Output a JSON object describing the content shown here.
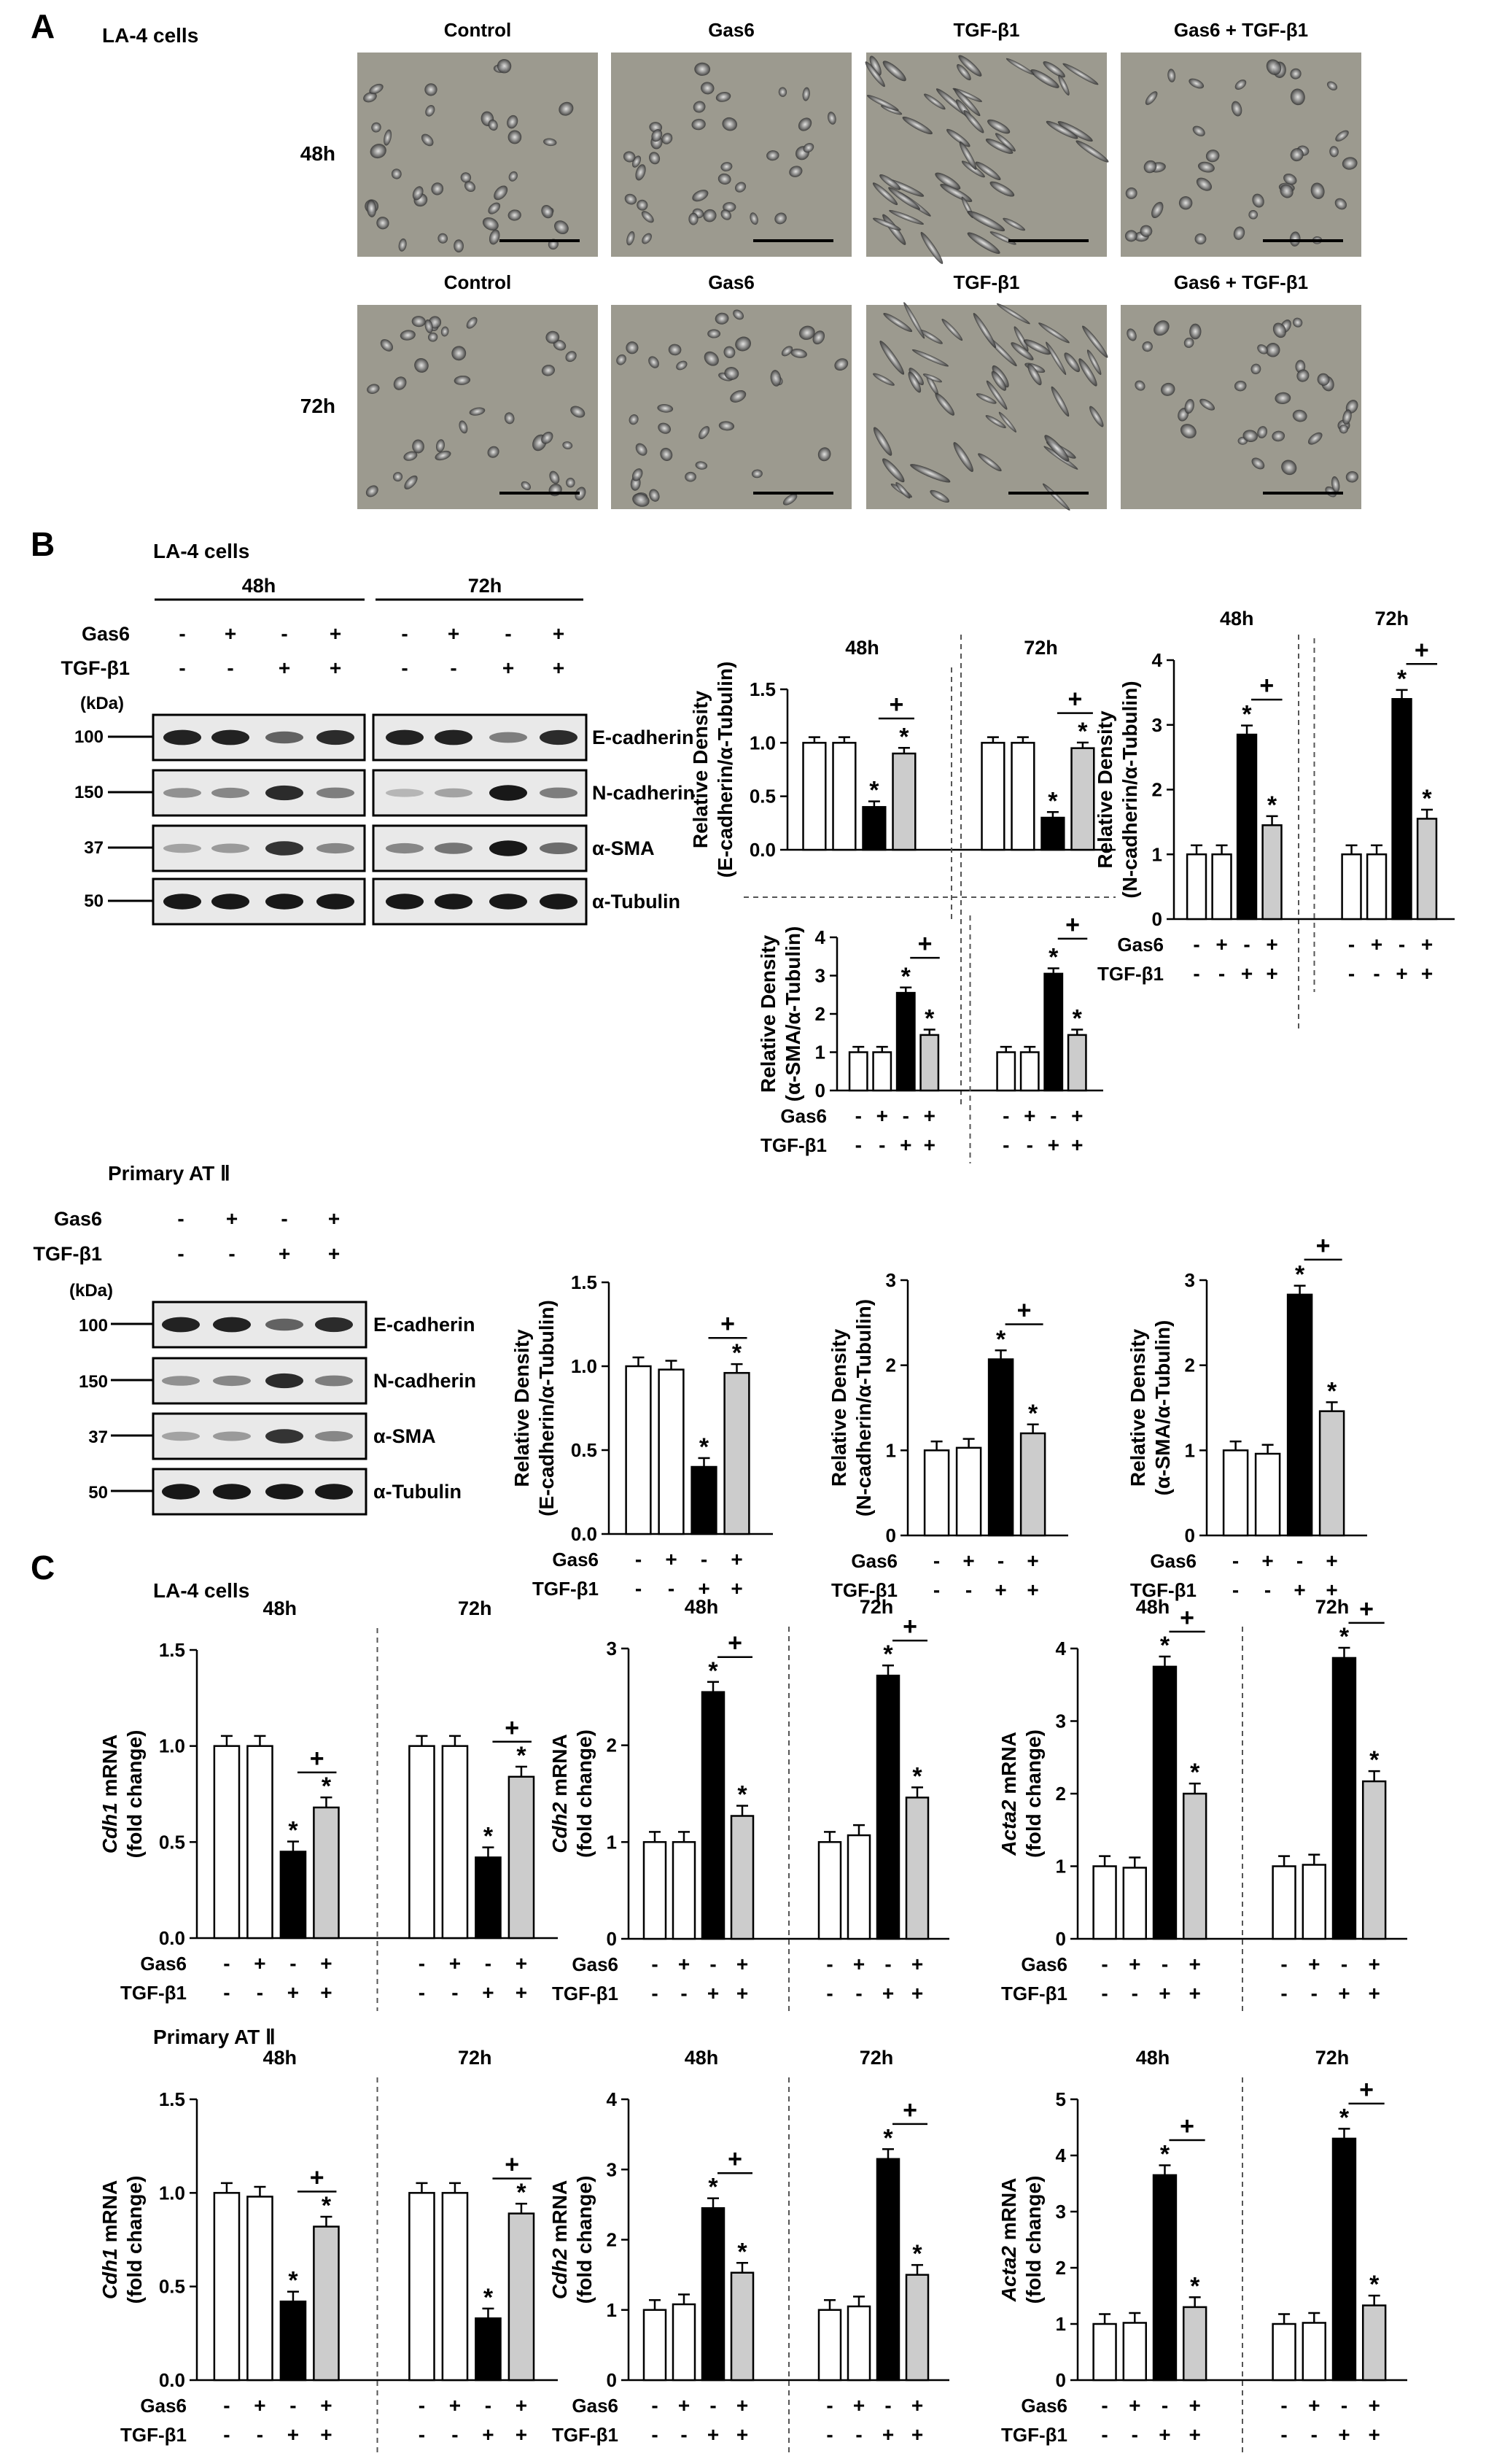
{
  "panels": {
    "A": "A",
    "B": "B",
    "C": "C"
  },
  "partA": {
    "cell_line": "LA-4 cells",
    "conditions": [
      "Control",
      "Gas6",
      "TGF-β1",
      "Gas6 + TGF-β1"
    ],
    "times": [
      "48h",
      "72h"
    ]
  },
  "partB_la4": {
    "cell_line": "LA-4 cells",
    "blot_times": [
      "48h",
      "72h"
    ],
    "row_labels": [
      "Gas6",
      "TGF-β1"
    ],
    "kda_label": "(kDa)",
    "kda": [
      "100",
      "150",
      "37",
      "50"
    ],
    "proteins": [
      "E-cadherin",
      "N-cadherin",
      "α-SMA",
      "α-Tubulin"
    ],
    "gas6_signs": [
      "-",
      "+",
      "-",
      "+"
    ],
    "tgf_signs": [
      "-",
      "-",
      "+",
      "+"
    ]
  },
  "partB_primary": {
    "cell_line": "Primary AT Ⅱ",
    "row_labels": [
      "Gas6",
      "TGF-β1"
    ],
    "kda_label": "(kDa)",
    "kda": [
      "100",
      "150",
      "37",
      "50"
    ],
    "proteins": [
      "E-cadherin",
      "N-cadherin",
      "α-SMA",
      "α-Tubulin"
    ],
    "gas6_signs": [
      "-",
      "+",
      "-",
      "+"
    ],
    "tgf_signs": [
      "-",
      "-",
      "+",
      "+"
    ]
  },
  "partC": {
    "la4_label": "LA-4 cells",
    "primary_label": "Primary AT Ⅱ"
  },
  "colors": {
    "control": "#ffffff",
    "gas6": "#ffffff",
    "tgf": "#000000",
    "combo": "#cccccc",
    "edge": "#000000"
  },
  "chart_data": [
    {
      "id": "b_ecad_la4",
      "type": "bar",
      "ylabel": [
        "Relative Density",
        "(E-cadherin/α-Tubulin)"
      ],
      "ylim": [
        0,
        1.5
      ],
      "ticks": [
        "0.0",
        "0.5",
        "1.0",
        "1.5"
      ],
      "groups": [
        {
          "label": "48h",
          "values": [
            1.0,
            1.0,
            0.4,
            0.9
          ]
        },
        {
          "label": "72h",
          "values": [
            1.0,
            1.0,
            0.3,
            0.95
          ]
        }
      ],
      "star": "*",
      "plus": "+",
      "show_signs": false
    },
    {
      "id": "b_ncad_la4",
      "type": "bar",
      "ylabel": [
        "Relative Density",
        "(N-cadherin/α-Tubulin)"
      ],
      "ylim": [
        0,
        4
      ],
      "ticks": [
        "0",
        "1",
        "2",
        "3",
        "4"
      ],
      "groups": [
        {
          "label": "48h",
          "values": [
            1.0,
            1.0,
            2.85,
            1.45
          ]
        },
        {
          "label": "72h",
          "values": [
            1.0,
            1.0,
            3.4,
            1.55
          ]
        }
      ],
      "star": "*",
      "plus": "+",
      "show_signs": true,
      "signs": {
        "gas6": "Gas6",
        "tgf": "TGF-β1",
        "gas6_signs": [
          "-",
          "+",
          "-",
          "+"
        ],
        "tgf_signs": [
          "-",
          "-",
          "+",
          "+"
        ]
      }
    },
    {
      "id": "b_sma_la4",
      "type": "bar",
      "ylabel": [
        "Relative Density",
        "(α-SMA/α-Tubulin)"
      ],
      "ylim": [
        0,
        4
      ],
      "ticks": [
        "0",
        "1",
        "2",
        "3",
        "4"
      ],
      "groups": [
        {
          "label": "",
          "values": [
            1.0,
            1.0,
            2.55,
            1.45
          ]
        },
        {
          "label": "",
          "values": [
            1.0,
            1.0,
            3.05,
            1.45
          ]
        }
      ],
      "star": "*",
      "plus": "+",
      "show_signs": true,
      "signs": {
        "gas6": "Gas6",
        "tgf": "TGF-β1",
        "gas6_signs": [
          "-",
          "+",
          "-",
          "+"
        ],
        "tgf_signs": [
          "-",
          "-",
          "+",
          "+"
        ]
      }
    },
    {
      "id": "b_ecad_p",
      "type": "bar",
      "ylabel": [
        "Relative Density",
        "(E-cadherin/α-Tubulin)"
      ],
      "ylim": [
        0,
        1.5
      ],
      "ticks": [
        "0.0",
        "0.5",
        "1.0",
        "1.5"
      ],
      "groups": [
        {
          "label": "",
          "values": [
            1.0,
            0.98,
            0.4,
            0.96
          ]
        }
      ],
      "star": "*",
      "plus": "+",
      "show_signs": true,
      "signs": {
        "gas6": "Gas6",
        "tgf": "TGF-β1",
        "gas6_signs": [
          "-",
          "+",
          "-",
          "+"
        ],
        "tgf_signs": [
          "-",
          "-",
          "+",
          "+"
        ]
      }
    },
    {
      "id": "b_ncad_p",
      "type": "bar",
      "ylabel": [
        "Relative Density",
        "(N-cadherin/α-Tubulin)"
      ],
      "ylim": [
        0,
        3
      ],
      "ticks": [
        "0",
        "1",
        "2",
        "3"
      ],
      "groups": [
        {
          "label": "",
          "values": [
            1.0,
            1.03,
            2.07,
            1.2
          ]
        }
      ],
      "star": "*",
      "plus": "+",
      "show_signs": true,
      "signs": {
        "gas6": "Gas6",
        "tgf": "TGF-β1",
        "gas6_signs": [
          "-",
          "+",
          "-",
          "+"
        ],
        "tgf_signs": [
          "-",
          "-",
          "+",
          "+"
        ]
      }
    },
    {
      "id": "b_sma_p",
      "type": "bar",
      "ylabel": [
        "Relative Density",
        "(α-SMA/α-Tubulin)"
      ],
      "ylim": [
        0,
        3
      ],
      "ticks": [
        "0",
        "1",
        "2",
        "3"
      ],
      "groups": [
        {
          "label": "",
          "values": [
            1.0,
            0.96,
            2.83,
            1.46
          ]
        }
      ],
      "star": "*",
      "plus": "+",
      "show_signs": true,
      "signs": {
        "gas6": "Gas6",
        "tgf": "TGF-β1",
        "gas6_signs": [
          "-",
          "+",
          "-",
          "+"
        ],
        "tgf_signs": [
          "-",
          "-",
          "+",
          "+"
        ]
      }
    },
    {
      "id": "c_cdh1_la4",
      "type": "bar",
      "ylabel": [
        "Cdh1 mRNA",
        "(fold change)"
      ],
      "ylim": [
        0,
        1.5
      ],
      "ticks": [
        "0.0",
        "0.5",
        "1.0",
        "1.5"
      ],
      "groups": [
        {
          "label": "48h",
          "values": [
            1.0,
            1.0,
            0.45,
            0.68
          ]
        },
        {
          "label": "72h",
          "values": [
            1.0,
            1.0,
            0.42,
            0.84
          ]
        }
      ],
      "star": "*",
      "plus": "+",
      "show_signs": true,
      "signs": {
        "gas6": "Gas6",
        "tgf": "TGF-β1",
        "gas6_signs": [
          "-",
          "+",
          "-",
          "+"
        ],
        "tgf_signs": [
          "-",
          "-",
          "+",
          "+"
        ]
      }
    },
    {
      "id": "c_cdh2_la4",
      "type": "bar",
      "ylabel": [
        "Cdh2 mRNA",
        "(fold change)"
      ],
      "ylim": [
        0,
        3
      ],
      "ticks": [
        "0",
        "1",
        "2",
        "3"
      ],
      "groups": [
        {
          "label": "48h",
          "values": [
            1.0,
            1.0,
            2.55,
            1.27
          ]
        },
        {
          "label": "72h",
          "values": [
            1.0,
            1.07,
            2.72,
            1.46
          ]
        }
      ],
      "star": "*",
      "plus": "+",
      "show_signs": true,
      "signs": {
        "gas6": "Gas6",
        "tgf": "TGF-β1",
        "gas6_signs": [
          "-",
          "+",
          "-",
          "+"
        ],
        "tgf_signs": [
          "-",
          "-",
          "+",
          "+"
        ]
      }
    },
    {
      "id": "c_acta2_la4",
      "type": "bar",
      "ylabel": [
        "Acta2 mRNA",
        "(fold change)"
      ],
      "ylim": [
        0,
        4
      ],
      "ticks": [
        "0",
        "1",
        "2",
        "3",
        "4"
      ],
      "groups": [
        {
          "label": "48h",
          "values": [
            1.0,
            0.98,
            3.75,
            2.0
          ]
        },
        {
          "label": "72h",
          "values": [
            1.0,
            1.02,
            3.87,
            2.17
          ]
        }
      ],
      "star": "*",
      "plus": "+",
      "show_signs": true,
      "signs": {
        "gas6": "Gas6",
        "tgf": "TGF-β1",
        "gas6_signs": [
          "-",
          "+",
          "-",
          "+"
        ],
        "tgf_signs": [
          "-",
          "-",
          "+",
          "+"
        ]
      }
    },
    {
      "id": "c_cdh1_p",
      "type": "bar",
      "ylabel": [
        "Cdh1 mRNA",
        "(fold change)"
      ],
      "ylim": [
        0,
        1.5
      ],
      "ticks": [
        "0.0",
        "0.5",
        "1.0",
        "1.5"
      ],
      "groups": [
        {
          "label": "48h",
          "values": [
            1.0,
            0.98,
            0.42,
            0.82
          ]
        },
        {
          "label": "72h",
          "values": [
            1.0,
            1.0,
            0.33,
            0.89
          ]
        }
      ],
      "star": "*",
      "plus": "+",
      "show_signs": true,
      "signs": {
        "gas6": "Gas6",
        "tgf": "TGF-β1",
        "gas6_signs": [
          "-",
          "+",
          "-",
          "+"
        ],
        "tgf_signs": [
          "-",
          "-",
          "+",
          "+"
        ]
      }
    },
    {
      "id": "c_cdh2_p",
      "type": "bar",
      "ylabel": [
        "Cdh2 mRNA",
        "(fold change)"
      ],
      "ylim": [
        0,
        4
      ],
      "ticks": [
        "0",
        "1",
        "2",
        "3",
        "4"
      ],
      "groups": [
        {
          "label": "48h",
          "values": [
            1.0,
            1.08,
            2.45,
            1.53
          ]
        },
        {
          "label": "72h",
          "values": [
            1.0,
            1.05,
            3.15,
            1.5
          ]
        }
      ],
      "star": "*",
      "plus": "+",
      "show_signs": true,
      "signs": {
        "gas6": "Gas6",
        "tgf": "TGF-β1",
        "gas6_signs": [
          "-",
          "+",
          "-",
          "+"
        ],
        "tgf_signs": [
          "-",
          "-",
          "+",
          "+"
        ]
      }
    },
    {
      "id": "c_acta2_p",
      "type": "bar",
      "ylabel": [
        "Acta2 mRNA",
        "(fold change)"
      ],
      "ylim": [
        0,
        5
      ],
      "ticks": [
        "0",
        "1",
        "2",
        "3",
        "4",
        "5"
      ],
      "groups": [
        {
          "label": "48h",
          "values": [
            1.0,
            1.02,
            3.65,
            1.3
          ]
        },
        {
          "label": "72h",
          "values": [
            1.0,
            1.02,
            4.3,
            1.33
          ]
        }
      ],
      "star": "*",
      "plus": "+",
      "show_signs": true,
      "signs": {
        "gas6": "Gas6",
        "tgf": "TGF-β1",
        "gas6_signs": [
          "-",
          "+",
          "-",
          "+"
        ],
        "tgf_signs": [
          "-",
          "-",
          "+",
          "+"
        ]
      }
    }
  ]
}
